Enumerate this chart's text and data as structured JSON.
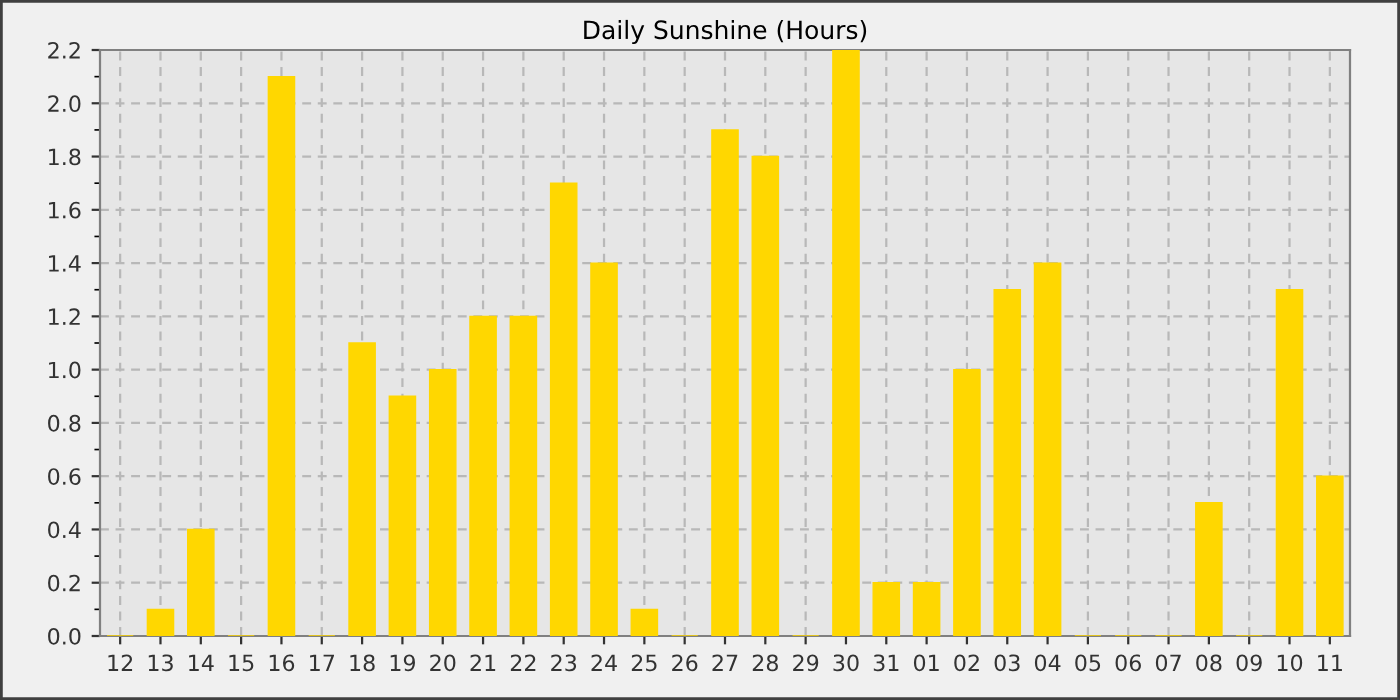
{
  "chart_data": {
    "type": "bar",
    "title": "Daily Sunshine (Hours)",
    "categories": [
      "12",
      "13",
      "14",
      "15",
      "16",
      "17",
      "18",
      "19",
      "20",
      "21",
      "22",
      "23",
      "24",
      "25",
      "26",
      "27",
      "28",
      "29",
      "30",
      "31",
      "01",
      "02",
      "03",
      "04",
      "05",
      "06",
      "07",
      "08",
      "09",
      "10",
      "11"
    ],
    "values": [
      0,
      0.1,
      0.4,
      0,
      2.1,
      0,
      1.1,
      0.9,
      1.0,
      1.2,
      1.2,
      1.7,
      1.4,
      0.1,
      0,
      1.9,
      1.8,
      0,
      2.2,
      0.2,
      0.2,
      1.0,
      1.3,
      1.4,
      0,
      0,
      0,
      0.5,
      0,
      1.3,
      0.6
    ],
    "color": "#ffd700",
    "ylim": [
      0,
      2.2
    ],
    "yticks": [
      {
        "value": 0,
        "label": "0.0"
      },
      0.2,
      0.4,
      0.6,
      0.8,
      {
        "value": 1,
        "label": "1.0"
      },
      1.2,
      1.4,
      1.6,
      1.8,
      {
        "value": 2,
        "label": "2.0"
      },
      2.2
    ],
    "grid": true
  }
}
